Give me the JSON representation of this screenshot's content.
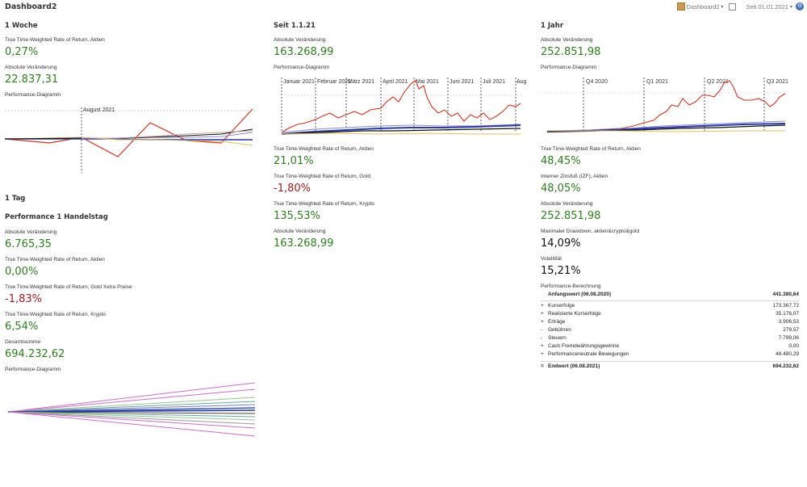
{
  "app": {
    "title": "Dashboard2"
  },
  "toolbar": {
    "dashboard_label": "Dashboard2",
    "period_label": "Seit 01.01.2021",
    "dashboard_icon": "dashboard-icon",
    "calendar_icon": "calendar-icon",
    "settings_icon": "gear-icon"
  },
  "colors": {
    "green": "#2e7d1f",
    "red": "#9c1c1c",
    "series_red": "#cc3522",
    "series_blue": "#2a3aa0"
  },
  "col1": {
    "week": {
      "title": "1 Woche",
      "twr_label": "True Time-Weighted Rate of Return, Aktien",
      "twr_value": "0,27%",
      "abs_label": "Absolute Veränderung",
      "abs_value": "22.837,31",
      "chart_label": "Performance-Diagramm",
      "chart_tick": "August 2021"
    },
    "day": {
      "title": "1 Tag",
      "subtitle": "Performance 1 Handelstag",
      "abs_label": "Absolute Veränderung",
      "abs_value": "6.765,35",
      "twr_aktien_label": "True Time-Weighted Rate of Return, Aktien",
      "twr_aktien_value": "0,00%",
      "twr_gold_label": "True Time-Weighted Rate of Return, Gold Xetra Preise",
      "twr_gold_value": "-1,83%",
      "twr_krypto_label": "True Time-Weighted Rate of Return, Krypto",
      "twr_krypto_value": "6,54%",
      "sum_label": "Gesamtsumme",
      "sum_value": "694.232,62",
      "chart_label": "Performance-Diagramm"
    }
  },
  "col2": {
    "title": "Seit 1.1.21",
    "abs_label": "Absolute Veränderung",
    "abs_value": "163.268,99",
    "chart_label": "Performance-Diagramm",
    "months": [
      "Januar 2021",
      "Februar 2021",
      "März 2021",
      "April 2021",
      "Mai 2021",
      "Juni 2021",
      "Juli 2021",
      "Aug"
    ],
    "twr_aktien_label": "True Time-Weighted Rate of Return, Aktien",
    "twr_aktien_value": "21,01%",
    "twr_gold_label": "True Time-Weighted Rate of Return, Gold",
    "twr_gold_value": "-1,80%",
    "twr_krypto_label": "True Time-Weighted Rate of Return, Krypto",
    "twr_krypto_value": "135,53%",
    "abs2_label": "Absolute Veränderung",
    "abs2_value": "163.268,99"
  },
  "col3": {
    "title": "1 Jahr",
    "abs_label": "Absolute Veränderung",
    "abs_value": "252.851,98",
    "chart_label": "Performance-Diagramm",
    "quarters": [
      "Q4 2020",
      "Q1 2021",
      "Q2 2021",
      "Q3 2021"
    ],
    "twr_label": "True Time-Weighted Rate of Return, Aktien",
    "twr_value": "48,45%",
    "izf_label": "Interner Zinsfuß (IZF), Aktien",
    "izf_value": "48,05%",
    "abs2_label": "Absolute Veränderung",
    "abs2_value": "252.851,98",
    "dd_label": "Maximaler Drawdown, aktien&crypto&gold",
    "dd_value": "14,09%",
    "vol_label": "Volatilität",
    "vol_value": "15,21%",
    "calc_label": "Performance-Berechnung",
    "calc": {
      "start_label": "Anfangswert (06.08.2020)",
      "start_value": "441.380,64",
      "rows": [
        {
          "sign": "+",
          "name": "Kurserfolge",
          "value": "173.367,72"
        },
        {
          "sign": "+",
          "name": "Realisierte Kurserfolge",
          "value": "35.176,07"
        },
        {
          "sign": "+",
          "name": "Erträge",
          "value": "3.906,53"
        },
        {
          "sign": "-",
          "name": "Gebühren",
          "value": "279,57"
        },
        {
          "sign": "-",
          "name": "Steuern",
          "value": "7.799,06"
        },
        {
          "sign": "+",
          "name": "Cash Fremdwährungsgewinne",
          "value": "0,00"
        },
        {
          "sign": "+",
          "name": "Performanceneutrale Bewegungen",
          "value": "48.480,29"
        }
      ],
      "end_sign": "=",
      "end_label": "Endwert (06.08.2021)",
      "end_value": "694.232,62"
    }
  }
}
